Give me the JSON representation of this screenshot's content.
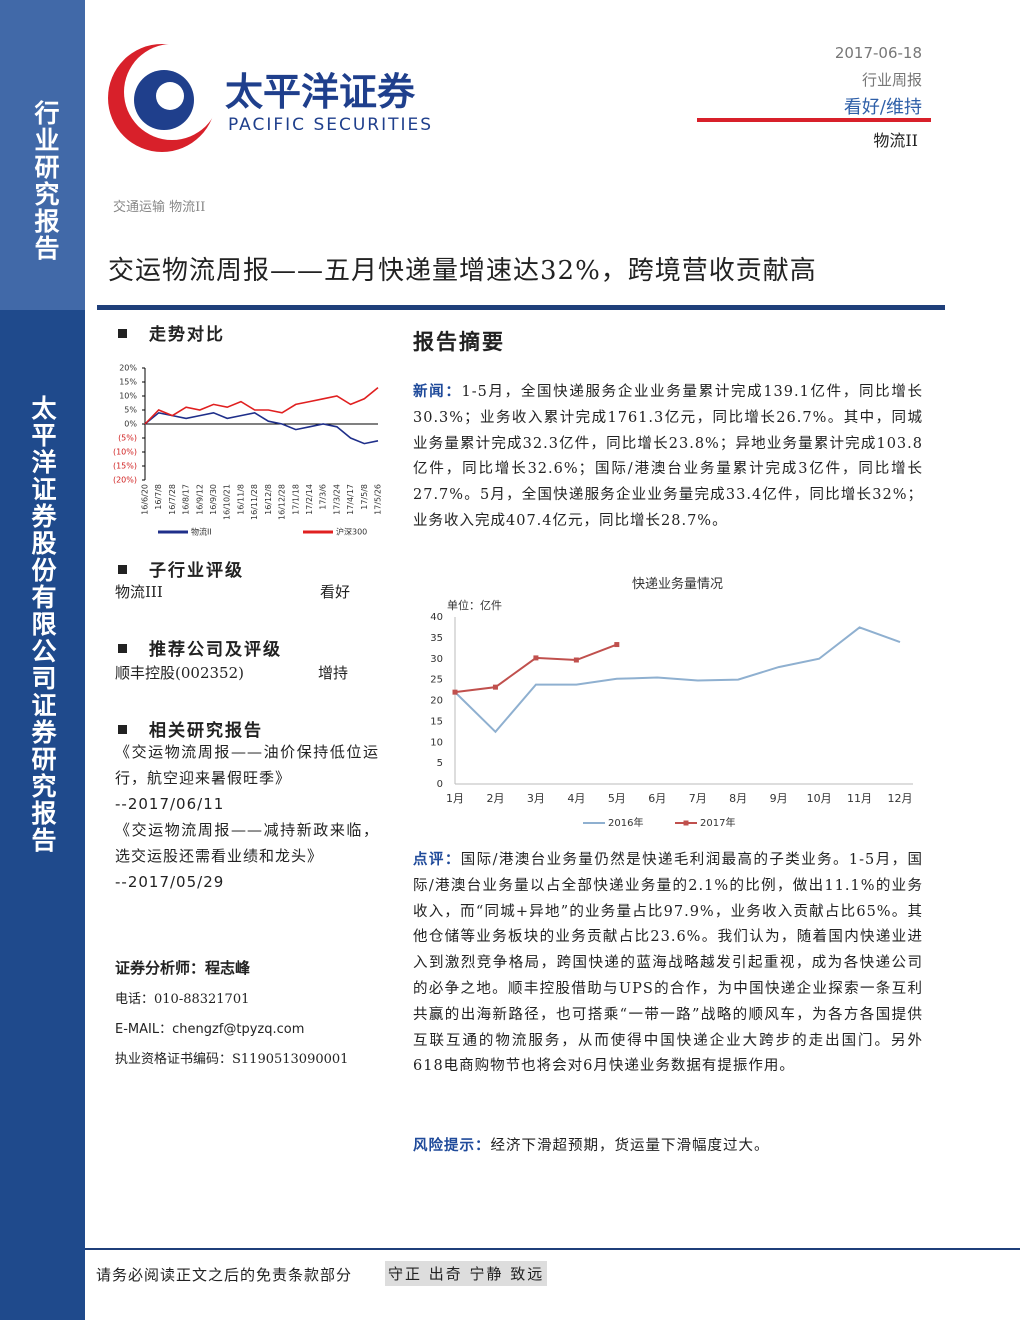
{
  "sidebar": {
    "category": "行业研究报告",
    "company": "太平洋证券股份有限公司证券研究报告"
  },
  "logo": {
    "cn": "太平洋证券",
    "en": "PACIFIC SECURITIES"
  },
  "header": {
    "date": "2017-06-18",
    "type": "行业周报",
    "rating": "看好/维持",
    "sector": "物流II"
  },
  "breadcrumb": "交通运输 物流II",
  "title": "交运物流周报——五月快递量增速达32%，跨境营收贡献高",
  "left": {
    "trend_heading": "走势对比",
    "sub_rating_heading": "子行业评级",
    "sub_rating": {
      "name": "物流III",
      "rating": "看好"
    },
    "company_heading": "推荐公司及评级",
    "company": {
      "name": "顺丰控股(002352)",
      "rating": "增持"
    },
    "related_heading": "相关研究报告",
    "related": [
      {
        "title": "《交运物流周报——油价保持低位运行，航空迎来暑假旺季》",
        "date": "--2017/06/11"
      },
      {
        "title": "《交运物流周报——减持新政来临，选交运股还需看业绩和龙头》",
        "date": "--2017/05/29"
      }
    ],
    "analyst": {
      "name": "证券分析师：程志峰",
      "phone": "电话：010-88321701",
      "email": "E-MAIL：chengzf@tpyzq.com",
      "cert": "执业资格证书编码：S1190513090001"
    }
  },
  "summary": {
    "heading": "报告摘要",
    "news": {
      "label": "新闻：",
      "text": "1-5月，全国快递服务企业业务量累计完成139.1亿件，同比增长30.3%；业务收入累计完成1761.3亿元，同比增长26.7%。其中，同城业务量累计完成32.3亿件，同比增长23.8%；异地业务量累计完成103.8亿件，同比增长32.6%；国际/港澳台业务量累计完成3亿件，同比增长27.7%。5月，全国快递服务企业业务量完成33.4亿件，同比增长32%；业务收入完成407.4亿元，同比增长28.7%。"
    },
    "comment": {
      "label": "点评：",
      "text": "国际/港澳台业务量仍然是快递毛利润最高的子类业务。1-5月，国际/港澳台业务量以占全部快递业务量的2.1%的比例，做出11.1%的业务收入，而“同城+异地”的业务量占比97.9%，业务收入贡献占比65%。其他仓储等业务板块的业务贡献占比23.6%。我们认为，随着国内快递业进入到激烈竞争格局，跨国快递的蓝海战略越发引起重视，成为各快递公司的必争之地。顺丰控股借助与UPS的合作，为中国快递企业探索一条互利共赢的出海新路径，也可搭乘“一带一路”战略的顺风车，为各方各国提供互联互通的物流服务，从而使得中国快递企业大跨步的走出国门。另外618电商购物节也将会对6月快递业务数据有提振作用。"
    },
    "risk": {
      "label": "风险提示：",
      "text": "经济下滑超预期，货运量下滑幅度过大。"
    }
  },
  "footer": {
    "disclaimer": "请务必阅读正文之后的免责条款部分",
    "motto": "守正 出奇 宁静 致远"
  },
  "chart_data": [
    {
      "type": "line",
      "categories": [
        "16/6/20",
        "16/7/8",
        "16/7/28",
        "16/8/17",
        "16/9/12",
        "16/9/30",
        "16/10/21",
        "16/11/8",
        "16/11/28",
        "16/12/8",
        "16/12/28",
        "17/1/18",
        "17/2/14",
        "17/3/6",
        "17/3/24",
        "17/4/17",
        "17/5/8",
        "17/5/26"
      ],
      "series": [
        {
          "name": "物流II",
          "color": "#1f2f8a",
          "values": [
            0,
            4,
            3,
            2,
            3,
            4,
            2,
            3,
            4,
            1,
            0,
            -2,
            -1,
            0,
            -1,
            -5,
            -7,
            -6
          ]
        },
        {
          "name": "沪深300",
          "color": "#e02020",
          "values": [
            0,
            5,
            3,
            6,
            5,
            7,
            6,
            8,
            5,
            5,
            4,
            7,
            8,
            9,
            10,
            7,
            9,
            13
          ]
        }
      ],
      "ylim": [
        -20,
        20
      ],
      "yticks": [
        {
          "value": 20,
          "label": "20%"
        },
        {
          "value": 15,
          "label": "15%"
        },
        {
          "value": 10,
          "label": "10%"
        },
        {
          "value": 5,
          "label": "5%"
        },
        {
          "value": 0,
          "label": "0%"
        },
        {
          "value": -5,
          "label": "(5%)"
        },
        {
          "value": -10,
          "label": "(10%)"
        },
        {
          "value": -15,
          "label": "(15%)"
        },
        {
          "value": -20,
          "label": "(20%)"
        }
      ],
      "grid": false
    },
    {
      "type": "line",
      "title": "快递业务量情况",
      "y_label": "单位：亿件",
      "categories": [
        "1月",
        "2月",
        "3月",
        "4月",
        "5月",
        "6月",
        "7月",
        "8月",
        "9月",
        "10月",
        "11月",
        "12月"
      ],
      "series": [
        {
          "name": "2016年",
          "color": "#8fb0d0",
          "values": [
            22,
            12.5,
            23.8,
            23.8,
            25.2,
            25.5,
            24.8,
            25,
            28,
            30,
            37.5,
            34
          ]
        },
        {
          "name": "2017年",
          "color": "#c0504d",
          "marker": "square",
          "values": [
            22,
            23.2,
            30.2,
            29.7,
            33.4,
            null,
            null,
            null,
            null,
            null,
            null,
            null
          ]
        }
      ],
      "ylim": [
        0,
        40
      ],
      "yticks": [
        0,
        5,
        10,
        15,
        20,
        25,
        30,
        35,
        40
      ],
      "grid": false
    }
  ]
}
